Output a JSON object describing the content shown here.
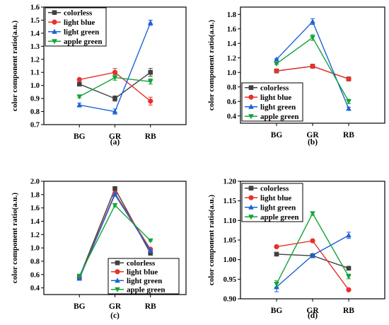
{
  "chart_data": [
    {
      "type": "line",
      "panel": "(a)",
      "ylabel": "color component ratio(a.u.)",
      "categories": [
        "BG",
        "GR",
        "RB"
      ],
      "ylim": [
        0.7,
        1.6
      ],
      "yticks": [
        "0.7",
        "0.8",
        "0.9",
        "1.0",
        "1.1",
        "1.2",
        "1.3",
        "1.4",
        "1.5",
        "1.6"
      ],
      "legend_position": "top-left",
      "series": [
        {
          "name": "colorless",
          "color": "#404040",
          "marker": "square",
          "values": [
            1.01,
            0.9,
            1.1
          ],
          "errors": [
            0.005,
            0.02,
            0.03
          ]
        },
        {
          "name": "light blue",
          "color": "#e8312a",
          "marker": "circle",
          "values": [
            1.045,
            1.1,
            0.88
          ],
          "errors": [
            0.005,
            0.03,
            0.03
          ]
        },
        {
          "name": "light green",
          "color": "#1a63d8",
          "marker": "triangle-up",
          "values": [
            0.85,
            0.8,
            1.48
          ],
          "errors": [
            0.015,
            0.02,
            0.02
          ]
        },
        {
          "name": "apple green",
          "color": "#14a337",
          "marker": "triangle-down",
          "values": [
            0.915,
            1.06,
            1.03
          ],
          "errors": [
            0.01,
            0.02,
            0.02
          ]
        }
      ]
    },
    {
      "type": "line",
      "panel": "(b)",
      "ylabel": "color component ratio(a.u.)",
      "categories": [
        "BG",
        "GR",
        "RB"
      ],
      "ylim": [
        0.3,
        1.9
      ],
      "yticks": [
        "0.4",
        "0.6",
        "0.8",
        "1.0",
        "1.2",
        "1.4",
        "1.6",
        "1.8"
      ],
      "legend_position": "bottom-left",
      "series": [
        {
          "name": "colorless",
          "color": "#404040",
          "marker": "square",
          "values": [
            1.02,
            1.085,
            0.91
          ],
          "errors": [
            0.01,
            0.01,
            0.01
          ]
        },
        {
          "name": "light blue",
          "color": "#e8312a",
          "marker": "circle",
          "values": [
            1.02,
            1.085,
            0.91
          ],
          "errors": [
            0.01,
            0.01,
            0.01
          ]
        },
        {
          "name": "light green",
          "color": "#1a63d8",
          "marker": "triangle-up",
          "values": [
            1.18,
            1.7,
            0.5
          ],
          "errors": [
            0.01,
            0.04,
            0.02
          ]
        },
        {
          "name": "apple green",
          "color": "#14a337",
          "marker": "triangle-down",
          "values": [
            1.12,
            1.48,
            0.6
          ],
          "errors": [
            0.01,
            0.04,
            0.03
          ]
        }
      ]
    },
    {
      "type": "line",
      "panel": "(c)",
      "ylabel": "color component ratio(a.u.)",
      "categories": [
        "BG",
        "GR",
        "RB"
      ],
      "ylim": [
        0.3,
        2.0
      ],
      "yticks": [
        "0.4",
        "0.6",
        "0.8",
        "1.0",
        "1.2",
        "1.4",
        "1.6",
        "1.8",
        "2.0"
      ],
      "legend_position": "bottom-right",
      "series": [
        {
          "name": "colorless",
          "color": "#404040",
          "marker": "square",
          "values": [
            0.56,
            1.89,
            0.92
          ],
          "errors": [
            0.01,
            0.03,
            0.02
          ]
        },
        {
          "name": "light blue",
          "color": "#e8312a",
          "marker": "circle",
          "values": [
            0.55,
            1.82,
            0.98
          ],
          "errors": [
            0.01,
            0.02,
            0.01
          ]
        },
        {
          "name": "light green",
          "color": "#1a63d8",
          "marker": "triangle-up",
          "values": [
            0.54,
            1.8,
            0.96
          ],
          "errors": [
            0.01,
            0.02,
            0.01
          ]
        },
        {
          "name": "apple green",
          "color": "#14a337",
          "marker": "triangle-down",
          "values": [
            0.58,
            1.64,
            1.11
          ],
          "errors": [
            0.01,
            0.02,
            0.01
          ]
        }
      ]
    },
    {
      "type": "line",
      "panel": "(d)",
      "ylabel": "color component ratio(a.u.)",
      "categories": [
        "BG",
        "GR",
        "RB"
      ],
      "ylim": [
        0.9,
        1.2
      ],
      "yticks": [
        "0.90",
        "0.95",
        "1.00",
        "1.05",
        "1.10",
        "1.15",
        "1.20"
      ],
      "legend_position": "top-left",
      "series": [
        {
          "name": "colorless",
          "color": "#404040",
          "marker": "square",
          "values": [
            1.014,
            1.01,
            0.978
          ],
          "errors": [
            0.002,
            0.002,
            0.002
          ]
        },
        {
          "name": "light blue",
          "color": "#e8312a",
          "marker": "circle",
          "values": [
            1.033,
            1.048,
            0.923
          ],
          "errors": [
            0.002,
            0.002,
            0.003
          ]
        },
        {
          "name": "light green",
          "color": "#1a63d8",
          "marker": "triangle-up",
          "values": [
            0.93,
            1.011,
            1.062
          ],
          "errors": [
            0.012,
            0.003,
            0.008
          ]
        },
        {
          "name": "apple green",
          "color": "#14a337",
          "marker": "triangle-down",
          "values": [
            0.938,
            1.118,
            0.957
          ],
          "errors": [
            0.008,
            0.004,
            0.006
          ]
        }
      ]
    }
  ]
}
